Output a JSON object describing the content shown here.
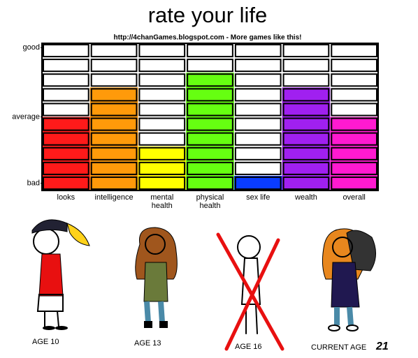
{
  "chart_data": {
    "type": "bar",
    "title": "rate your life",
    "subtitle": "http://4chanGames.blogspot.com - More games like this!",
    "categories": [
      "looks",
      "intelligence",
      "mental\nhealth",
      "physical\nhealth",
      "sex life",
      "wealth",
      "overall"
    ],
    "values": [
      5,
      7,
      3,
      8,
      1,
      7,
      5
    ],
    "colors": [
      "#ff1a1a",
      "#ff9a0a",
      "#ffff00",
      "#66ff11",
      "#0a3cff",
      "#a020f0",
      "#ff1ad0"
    ],
    "ylim": [
      0,
      10
    ],
    "yticks": [
      {
        "value": 0.5,
        "label": "bad"
      },
      {
        "value": 5,
        "label": "average"
      },
      {
        "value": 9.7,
        "label": "good"
      }
    ]
  },
  "figures": [
    {
      "caption": "AGE 10"
    },
    {
      "caption": "AGE 13"
    },
    {
      "caption": "AGE 16"
    },
    {
      "caption": "CURRENT AGE"
    }
  ],
  "current_age": "21"
}
